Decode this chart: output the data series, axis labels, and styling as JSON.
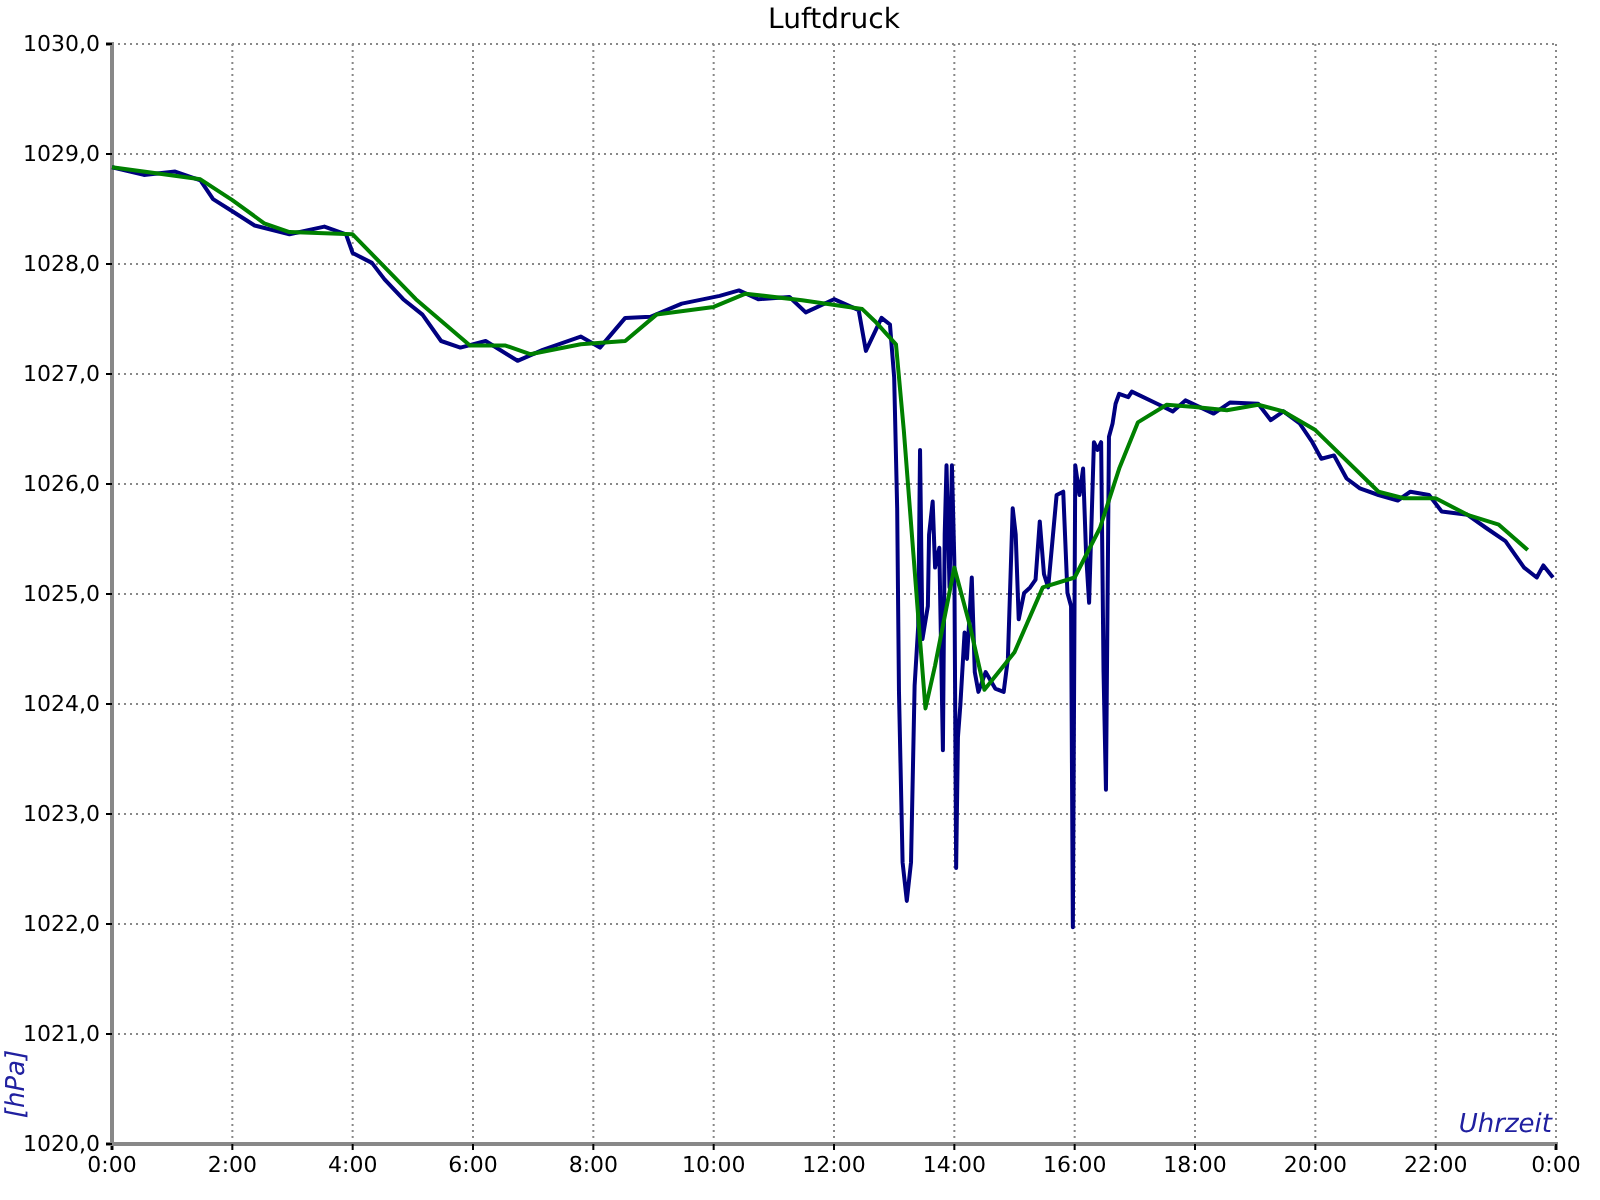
{
  "chart_data": {
    "type": "line",
    "title": "Luftdruck",
    "xlabel": "Uhrzeit",
    "ylabel": "[hPa]",
    "xlim": [
      0,
      24
    ],
    "ylim": [
      1020,
      1030
    ],
    "xticks": [
      {
        "value": 0,
        "label": "0:00"
      },
      {
        "value": 2,
        "label": "2:00"
      },
      {
        "value": 4,
        "label": "4:00"
      },
      {
        "value": 6,
        "label": "6:00"
      },
      {
        "value": 8,
        "label": "8:00"
      },
      {
        "value": 10,
        "label": "10:00"
      },
      {
        "value": 12,
        "label": "12:00"
      },
      {
        "value": 14,
        "label": "14:00"
      },
      {
        "value": 16,
        "label": "16:00"
      },
      {
        "value": 18,
        "label": "18:00"
      },
      {
        "value": 20,
        "label": "20:00"
      },
      {
        "value": 22,
        "label": "22:00"
      },
      {
        "value": 24,
        "label": "0:00"
      }
    ],
    "yticks": [
      {
        "value": 1020,
        "label": "1020,0"
      },
      {
        "value": 1021,
        "label": "1021,0"
      },
      {
        "value": 1022,
        "label": "1022,0"
      },
      {
        "value": 1023,
        "label": "1023,0"
      },
      {
        "value": 1024,
        "label": "1024,0"
      },
      {
        "value": 1025,
        "label": "1025,0"
      },
      {
        "value": 1026,
        "label": "1026,0"
      },
      {
        "value": 1027,
        "label": "1027,0"
      },
      {
        "value": 1028,
        "label": "1028,0"
      },
      {
        "value": 1029,
        "label": "1029,0"
      },
      {
        "value": 1030,
        "label": "1030,0"
      }
    ],
    "grid": true,
    "line_style": "solid",
    "series": [
      {
        "color": "#000080",
        "x": [
          0,
          0.53,
          1.05,
          1.47,
          1.68,
          2.0,
          2.37,
          2.95,
          3.53,
          3.89,
          4.0,
          4.32,
          4.53,
          4.84,
          5.16,
          5.47,
          5.79,
          6.21,
          6.74,
          7.16,
          7.79,
          8.11,
          8.53,
          8.95,
          9.47,
          10.1,
          10.42,
          10.74,
          11.26,
          11.53,
          12.0,
          12.41,
          12.53,
          12.79,
          12.93,
          13.0,
          13.05,
          13.08,
          13.14,
          13.21,
          13.28,
          13.34,
          13.4,
          13.43,
          13.47,
          13.56,
          13.58,
          13.64,
          13.68,
          13.75,
          13.81,
          13.84,
          13.87,
          13.92,
          13.96,
          14.0,
          14.03,
          14.06,
          14.1,
          14.17,
          14.21,
          14.29,
          14.34,
          14.4,
          14.52,
          14.68,
          14.82,
          14.89,
          14.97,
          15.02,
          15.07,
          15.16,
          15.26,
          15.35,
          15.42,
          15.49,
          15.56,
          15.63,
          15.7,
          15.81,
          15.88,
          15.94,
          15.97,
          16.01,
          16.08,
          16.14,
          16.19,
          16.24,
          16.32,
          16.38,
          16.44,
          16.48,
          16.52,
          16.57,
          16.63,
          16.68,
          16.74,
          16.89,
          16.95,
          17.37,
          17.63,
          17.84,
          18.31,
          18.58,
          19.05,
          19.26,
          19.47,
          19.74,
          19.95,
          20.1,
          20.31,
          20.52,
          20.74,
          21.05,
          21.37,
          21.58,
          21.89,
          22.1,
          22.53,
          22.84,
          23.16,
          23.47,
          23.68,
          23.79,
          23.95
        ],
        "values": [
          1028.88,
          1028.81,
          1028.84,
          1028.76,
          1028.59,
          1028.48,
          1028.35,
          1028.27,
          1028.34,
          1028.27,
          1028.1,
          1028.01,
          1027.86,
          1027.68,
          1027.54,
          1027.3,
          1027.24,
          1027.3,
          1027.12,
          1027.22,
          1027.34,
          1027.24,
          1027.51,
          1027.52,
          1027.64,
          1027.71,
          1027.76,
          1027.68,
          1027.7,
          1027.56,
          1027.68,
          1027.58,
          1027.21,
          1027.51,
          1027.45,
          1026.97,
          1025.78,
          1024.11,
          1022.56,
          1022.21,
          1022.56,
          1024.17,
          1024.71,
          1026.31,
          1024.59,
          1024.89,
          1025.54,
          1025.84,
          1025.24,
          1025.42,
          1023.58,
          1025.54,
          1026.17,
          1025.06,
          1026.17,
          1025.3,
          1022.51,
          1023.7,
          1023.99,
          1024.65,
          1024.41,
          1025.15,
          1024.29,
          1024.11,
          1024.29,
          1024.14,
          1024.11,
          1024.41,
          1025.78,
          1025.54,
          1024.77,
          1025.01,
          1025.06,
          1025.13,
          1025.66,
          1025.18,
          1025.06,
          1025.48,
          1025.9,
          1025.93,
          1025.01,
          1024.89,
          1021.97,
          1026.17,
          1025.9,
          1026.14,
          1025.36,
          1024.92,
          1026.38,
          1026.31,
          1026.38,
          1024.29,
          1023.22,
          1026.43,
          1026.55,
          1026.73,
          1026.82,
          1026.79,
          1026.84,
          1026.73,
          1026.66,
          1026.76,
          1026.64,
          1026.74,
          1026.73,
          1026.58,
          1026.66,
          1026.55,
          1026.38,
          1026.23,
          1026.26,
          1026.05,
          1025.96,
          1025.9,
          1025.85,
          1025.93,
          1025.9,
          1025.75,
          1025.72,
          1025.6,
          1025.48,
          1025.24,
          1025.15,
          1025.26,
          1025.15
        ]
      },
      {
        "color": "#008000",
        "x": [
          0,
          1.47,
          2.0,
          2.53,
          2.95,
          4.0,
          5.05,
          5.95,
          6.53,
          6.95,
          7.79,
          8.53,
          9.05,
          10.0,
          10.53,
          11.47,
          12.47,
          12.68,
          13.03,
          13.16,
          13.32,
          13.42,
          13.52,
          13.68,
          14.0,
          14.26,
          14.5,
          15.0,
          15.47,
          16.0,
          16.42,
          16.74,
          17.05,
          17.53,
          18.0,
          18.53,
          19.05,
          19.47,
          20.0,
          21.05,
          21.47,
          22.0,
          22.53,
          23.05,
          23.53
        ],
        "values": [
          1028.88,
          1028.77,
          1028.58,
          1028.37,
          1028.29,
          1028.27,
          1027.68,
          1027.26,
          1027.26,
          1027.18,
          1027.27,
          1027.3,
          1027.54,
          1027.61,
          1027.73,
          1027.67,
          1027.59,
          1027.48,
          1027.27,
          1026.49,
          1025.36,
          1024.65,
          1023.96,
          1024.35,
          1025.24,
          1024.71,
          1024.13,
          1024.47,
          1025.06,
          1025.15,
          1025.6,
          1026.14,
          1026.56,
          1026.72,
          1026.7,
          1026.67,
          1026.72,
          1026.66,
          1026.49,
          1025.93,
          1025.87,
          1025.87,
          1025.72,
          1025.63,
          1025.4
        ]
      }
    ]
  }
}
